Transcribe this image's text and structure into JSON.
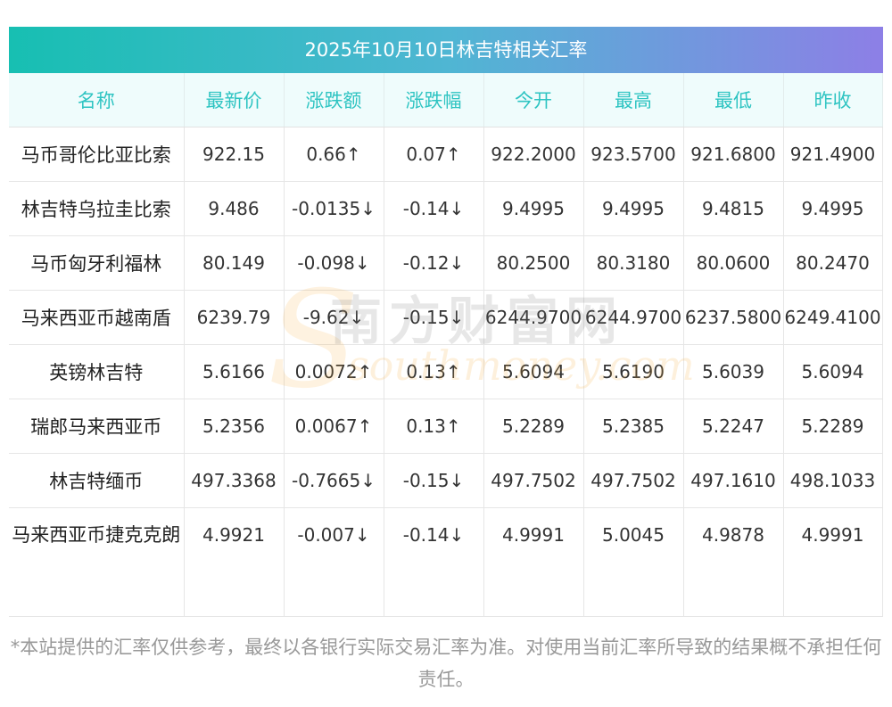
{
  "title": "2025年10月10日林吉特相关汇率",
  "headers": [
    "名称",
    "最新价",
    "涨跌额",
    "涨跌幅",
    "今开",
    "最高",
    "最低",
    "昨收"
  ],
  "rows": [
    {
      "name": "马币哥伦比亚比索",
      "latest": "922.15",
      "change": "0.66↑",
      "pct": "0.07↑",
      "open": "922.2000",
      "high": "923.5700",
      "low": "921.6800",
      "prev": "921.4900",
      "dir": "up"
    },
    {
      "name": "林吉特乌拉圭比索",
      "latest": "9.486",
      "change": "-0.0135↓",
      "pct": "-0.14↓",
      "open": "9.4995",
      "high": "9.4995",
      "low": "9.4815",
      "prev": "9.4995",
      "dir": "down"
    },
    {
      "name": "马币匈牙利福林",
      "latest": "80.149",
      "change": "-0.098↓",
      "pct": "-0.12↓",
      "open": "80.2500",
      "high": "80.3180",
      "low": "80.0600",
      "prev": "80.2470",
      "dir": "down"
    },
    {
      "name": "马来西亚币越南盾",
      "latest": "6239.79",
      "change": "-9.62↓",
      "pct": "-0.15↓",
      "open": "6244.9700",
      "high": "6244.9700",
      "low": "6237.5800",
      "prev": "6249.4100",
      "dir": "down"
    },
    {
      "name": "英镑林吉特",
      "latest": "5.6166",
      "change": "0.0072↑",
      "pct": "0.13↑",
      "open": "5.6094",
      "high": "5.6190",
      "low": "5.6039",
      "prev": "5.6094",
      "dir": "up"
    },
    {
      "name": "瑞郎马来西亚币",
      "latest": "5.2356",
      "change": "0.0067↑",
      "pct": "0.13↑",
      "open": "5.2289",
      "high": "5.2385",
      "low": "5.2247",
      "prev": "5.2289",
      "dir": "up"
    },
    {
      "name": "林吉特缅币",
      "latest": "497.3368",
      "change": "-0.7665↓",
      "pct": "-0.15↓",
      "open": "497.7502",
      "high": "497.7502",
      "low": "497.1610",
      "prev": "498.1033",
      "dir": "down"
    },
    {
      "name": "马来西亚币捷克克朗",
      "latest": "4.9921",
      "change": "-0.007↓",
      "pct": "-0.14↓",
      "open": "4.9991",
      "high": "5.0045",
      "low": "4.9878",
      "prev": "4.9991",
      "dir": "down"
    }
  ],
  "watermark": {
    "cn": "南方财富网",
    "en": "southmoney.com"
  },
  "disclaimer": "*本站提供的汇率仅供参考，最终以各银行实际交易汇率为准。对使用当前汇率所导致的结果概不承担任何责任。",
  "colors": {
    "up": "#ee1111",
    "down": "#118811",
    "header_text": "#2ec4c2"
  }
}
